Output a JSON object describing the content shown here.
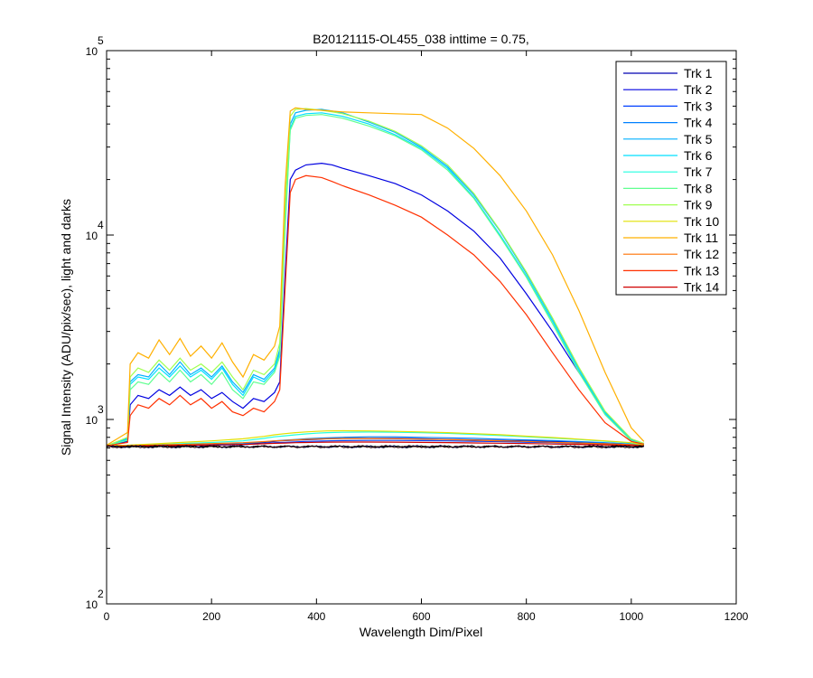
{
  "chart_data": {
    "type": "line",
    "title": "B20121115-OL455_038 inttime = 0.75,",
    "xlabel": "Wavelength Dim/Pixel",
    "ylabel": "Signal Intensity (ADU/pix/sec), light and darks",
    "xlim": [
      0,
      1200
    ],
    "ylim": [
      100,
      100000
    ],
    "yscale": "log",
    "grid": false,
    "legend_position": "top-right",
    "x_ticks": [
      "0",
      "200",
      "400",
      "600",
      "800",
      "1000",
      "1200"
    ],
    "y_ticks": [
      {
        "base": "10",
        "exp": "2",
        "value": 100
      },
      {
        "base": "10",
        "exp": "3",
        "value": 1000
      },
      {
        "base": "10",
        "exp": "4",
        "value": 10000
      },
      {
        "base": "10",
        "exp": "5",
        "value": 100000
      }
    ],
    "series": [
      {
        "name": "Trk 1",
        "color": "#0000b0",
        "x": [
          0,
          40,
          80,
          120,
          160,
          200,
          260,
          300,
          320,
          330,
          350,
          370,
          400,
          420,
          450,
          500,
          550,
          600,
          650,
          700,
          750,
          800,
          850,
          900,
          950,
          1000,
          1024
        ],
        "y": [
          720,
          720,
          720,
          725,
          725,
          730,
          735,
          750,
          760,
          765,
          770,
          775,
          780,
          785,
          790,
          790,
          790,
          785,
          780,
          775,
          770,
          765,
          760,
          755,
          745,
          735,
          725
        ]
      },
      {
        "name": "Trk 2",
        "color": "#0000e0",
        "x": [
          0,
          40,
          45,
          60,
          80,
          100,
          120,
          140,
          160,
          180,
          200,
          220,
          240,
          260,
          280,
          300,
          320,
          330,
          340,
          350,
          360,
          380,
          410,
          430,
          450,
          500,
          550,
          600,
          650,
          700,
          750,
          800,
          850,
          900,
          950,
          1000,
          1024
        ],
        "y": [
          720,
          760,
          1200,
          1350,
          1300,
          1450,
          1350,
          1500,
          1350,
          1450,
          1300,
          1400,
          1250,
          1150,
          1300,
          1250,
          1400,
          1600,
          6000,
          20000,
          22500,
          24000,
          24500,
          24000,
          23000,
          21000,
          19000,
          16500,
          13500,
          10500,
          7500,
          4800,
          3000,
          1800,
          1100,
          780,
          740
        ]
      },
      {
        "name": "Trk 3",
        "color": "#0040ff",
        "x": [
          0,
          40,
          80,
          120,
          160,
          200,
          260,
          300,
          320,
          340,
          360,
          380,
          400,
          420,
          450,
          500,
          550,
          600,
          650,
          700,
          750,
          800,
          850,
          900,
          950,
          1000,
          1024
        ],
        "y": [
          715,
          715,
          718,
          720,
          722,
          725,
          730,
          740,
          748,
          752,
          756,
          760,
          762,
          765,
          768,
          770,
          770,
          768,
          765,
          762,
          758,
          752,
          748,
          742,
          735,
          728,
          720
        ]
      },
      {
        "name": "Trk 4",
        "color": "#0080ff",
        "x": [
          0,
          40,
          80,
          120,
          160,
          200,
          260,
          300,
          320,
          340,
          360,
          380,
          400,
          420,
          450,
          500,
          550,
          600,
          650,
          700,
          750,
          800,
          850,
          900,
          950,
          1000,
          1024
        ],
        "y": [
          718,
          718,
          720,
          722,
          725,
          730,
          740,
          755,
          765,
          772,
          778,
          785,
          790,
          795,
          800,
          805,
          805,
          800,
          795,
          790,
          782,
          775,
          768,
          758,
          748,
          735,
          722
        ]
      },
      {
        "name": "Trk 5",
        "color": "#00b0ff",
        "x": [
          0,
          40,
          45,
          60,
          80,
          100,
          120,
          140,
          160,
          180,
          200,
          220,
          240,
          260,
          280,
          300,
          320,
          330,
          340,
          350,
          360,
          380,
          410,
          430,
          450,
          500,
          550,
          600,
          650,
          700,
          750,
          800,
          850,
          900,
          950,
          1000,
          1024
        ],
        "y": [
          720,
          790,
          1600,
          1750,
          1700,
          2000,
          1750,
          2050,
          1750,
          1900,
          1700,
          1950,
          1600,
          1400,
          1750,
          1650,
          1900,
          2400,
          12000,
          40000,
          46000,
          47500,
          48000,
          47000,
          46000,
          41000,
          36000,
          30000,
          23500,
          16500,
          10500,
          6200,
          3500,
          1900,
          1100,
          780,
          740
        ]
      },
      {
        "name": "Trk 6",
        "color": "#00e0ff",
        "x": [
          0,
          40,
          45,
          60,
          80,
          100,
          120,
          140,
          160,
          180,
          200,
          220,
          240,
          260,
          280,
          300,
          320,
          330,
          340,
          350,
          360,
          380,
          410,
          430,
          450,
          500,
          550,
          600,
          650,
          700,
          750,
          800,
          850,
          900,
          950,
          1000,
          1024
        ],
        "y": [
          720,
          780,
          1550,
          1700,
          1650,
          1900,
          1700,
          1950,
          1700,
          1850,
          1650,
          1900,
          1550,
          1350,
          1700,
          1600,
          1850,
          2300,
          11000,
          38000,
          44000,
          45500,
          46000,
          45000,
          44000,
          40000,
          35000,
          29500,
          23000,
          16000,
          10000,
          6000,
          3400,
          1850,
          1080,
          770,
          735
        ]
      },
      {
        "name": "Trk 7",
        "color": "#20ffe0",
        "x": [
          0,
          40,
          80,
          120,
          160,
          200,
          260,
          300,
          320,
          340,
          360,
          380,
          400,
          420,
          450,
          500,
          550,
          600,
          650,
          700,
          750,
          800,
          850,
          900,
          950,
          1000,
          1024
        ],
        "y": [
          720,
          722,
          728,
          735,
          742,
          750,
          765,
          790,
          805,
          815,
          825,
          835,
          842,
          848,
          852,
          855,
          852,
          848,
          840,
          830,
          818,
          805,
          792,
          778,
          762,
          745,
          728
        ]
      },
      {
        "name": "Trk 8",
        "color": "#60ff90",
        "x": [
          0,
          40,
          45,
          60,
          80,
          100,
          120,
          140,
          160,
          180,
          200,
          220,
          240,
          260,
          280,
          300,
          320,
          330,
          340,
          350,
          360,
          380,
          410,
          430,
          450,
          500,
          550,
          600,
          650,
          700,
          750,
          800,
          850,
          900,
          950,
          1000,
          1024
        ],
        "y": [
          720,
          770,
          1450,
          1600,
          1550,
          1800,
          1600,
          1850,
          1600,
          1750,
          1550,
          1800,
          1450,
          1300,
          1600,
          1550,
          1800,
          2200,
          10500,
          37000,
          43000,
          44500,
          45000,
          44000,
          43000,
          39000,
          34500,
          29000,
          22500,
          15800,
          9800,
          5900,
          3300,
          1800,
          1060,
          765,
          735
        ]
      },
      {
        "name": "Trk 9",
        "color": "#a0ff50",
        "x": [
          0,
          40,
          45,
          60,
          80,
          100,
          120,
          140,
          160,
          180,
          200,
          220,
          240,
          260,
          280,
          300,
          320,
          330,
          340,
          350,
          360,
          380,
          410,
          430,
          450,
          500,
          550,
          600,
          650,
          700,
          750,
          800,
          850,
          900,
          950,
          1000,
          1024
        ],
        "y": [
          720,
          800,
          1700,
          1900,
          1800,
          2100,
          1850,
          2150,
          1850,
          2000,
          1800,
          2050,
          1700,
          1450,
          1850,
          1750,
          2000,
          2600,
          14000,
          44000,
          48000,
          48500,
          47500,
          46500,
          45500,
          41500,
          36500,
          30500,
          24000,
          16800,
          10600,
          6300,
          3550,
          1920,
          1110,
          785,
          742
        ]
      },
      {
        "name": "Trk 10",
        "color": "#e0e000",
        "x": [
          0,
          40,
          80,
          120,
          160,
          200,
          260,
          300,
          320,
          340,
          360,
          380,
          400,
          420,
          450,
          500,
          550,
          600,
          650,
          700,
          750,
          800,
          850,
          900,
          950,
          1000,
          1024
        ],
        "y": [
          722,
          725,
          735,
          745,
          755,
          765,
          785,
          810,
          825,
          838,
          848,
          856,
          862,
          866,
          868,
          866,
          862,
          856,
          848,
          838,
          826,
          812,
          798,
          782,
          765,
          748,
          730
        ]
      },
      {
        "name": "Trk 11",
        "color": "#ffb000",
        "x": [
          0,
          40,
          45,
          60,
          80,
          100,
          120,
          140,
          160,
          180,
          200,
          220,
          240,
          260,
          280,
          300,
          320,
          330,
          340,
          350,
          360,
          380,
          410,
          430,
          450,
          500,
          550,
          600,
          650,
          700,
          750,
          800,
          850,
          900,
          950,
          1000,
          1024
        ],
        "y": [
          725,
          850,
          2000,
          2300,
          2150,
          2700,
          2250,
          2750,
          2200,
          2500,
          2150,
          2600,
          2050,
          1700,
          2250,
          2100,
          2500,
          3200,
          18000,
          47000,
          49000,
          48000,
          47500,
          47000,
          46500,
          46000,
          45500,
          45000,
          38000,
          29500,
          21000,
          13500,
          7800,
          3900,
          1800,
          900,
          760
        ]
      },
      {
        "name": "Trk 12",
        "color": "#ff7000",
        "x": [
          0,
          40,
          80,
          120,
          160,
          200,
          260,
          300,
          320,
          340,
          360,
          380,
          400,
          420,
          450,
          500,
          550,
          600,
          650,
          700,
          750,
          800,
          850,
          900,
          950,
          1000,
          1024
        ],
        "y": [
          718,
          720,
          725,
          730,
          735,
          740,
          748,
          758,
          765,
          770,
          775,
          780,
          783,
          786,
          788,
          788,
          786,
          782,
          778,
          772,
          766,
          760,
          752,
          745,
          738,
          730,
          722
        ]
      },
      {
        "name": "Trk 13",
        "color": "#ff3000",
        "x": [
          0,
          40,
          45,
          60,
          80,
          100,
          120,
          140,
          160,
          180,
          200,
          220,
          240,
          260,
          280,
          300,
          320,
          330,
          340,
          350,
          360,
          380,
          410,
          430,
          450,
          500,
          550,
          600,
          650,
          700,
          750,
          800,
          850,
          900,
          950,
          1000,
          1024
        ],
        "y": [
          720,
          750,
          1050,
          1200,
          1150,
          1300,
          1200,
          1350,
          1200,
          1300,
          1150,
          1250,
          1100,
          1050,
          1150,
          1100,
          1250,
          1450,
          5000,
          17000,
          20000,
          21000,
          20500,
          19500,
          18500,
          16500,
          14500,
          12500,
          10000,
          7800,
          5600,
          3700,
          2300,
          1450,
          960,
          760,
          735
        ]
      },
      {
        "name": "Trk 14",
        "color": "#d00000",
        "x": [
          0,
          40,
          80,
          120,
          160,
          200,
          260,
          300,
          320,
          340,
          360,
          380,
          400,
          420,
          450,
          500,
          550,
          600,
          650,
          700,
          750,
          800,
          850,
          900,
          950,
          1000,
          1024
        ],
        "y": [
          716,
          717,
          720,
          722,
          725,
          728,
          732,
          738,
          742,
          745,
          748,
          750,
          752,
          753,
          754,
          754,
          753,
          751,
          749,
          746,
          743,
          740,
          736,
          732,
          728,
          724,
          718
        ]
      }
    ]
  }
}
